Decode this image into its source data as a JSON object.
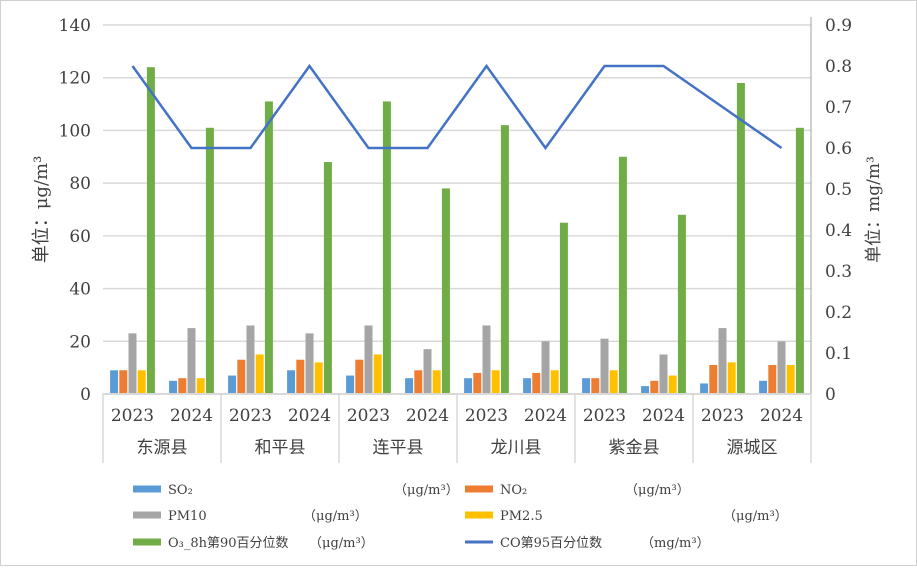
{
  "chart_data": {
    "type": "bar",
    "groups": [
      "东源县",
      "和平县",
      "连平县",
      "龙川县",
      "紫金县",
      "源城区"
    ],
    "categories": [
      "2023",
      "2024",
      "2023",
      "2024",
      "2023",
      "2024",
      "2023",
      "2024",
      "2023",
      "2024",
      "2023",
      "2024"
    ],
    "ylabel": "单位：μg/m³",
    "y2label": "单位：mg/m³",
    "ylim": [
      0,
      140
    ],
    "yticks": [
      "0",
      "20",
      "40",
      "60",
      "80",
      "100",
      "120",
      "140"
    ],
    "y2lim": [
      0,
      0.9
    ],
    "y2ticks": [
      "0",
      "0.1",
      "0.2",
      "0.3",
      "0.4",
      "0.5",
      "0.6",
      "0.7",
      "0.8",
      "0.9"
    ],
    "grid": true,
    "legend_position": "bottom",
    "series": [
      {
        "name": "SO₂",
        "unit": "（μg/m³）",
        "type": "bar",
        "color": "#5b9bd5",
        "values": [
          9,
          5,
          7,
          9,
          7,
          6,
          6,
          6,
          6,
          3,
          4,
          5
        ]
      },
      {
        "name": "NO₂",
        "unit": "（μg/m³）",
        "type": "bar",
        "color": "#ed7d31",
        "values": [
          9,
          6,
          13,
          13,
          13,
          9,
          8,
          8,
          6,
          5,
          11,
          11
        ]
      },
      {
        "name": "PM10",
        "unit": "（μg/m³）",
        "type": "bar",
        "color": "#a5a5a5",
        "values": [
          23,
          25,
          26,
          23,
          26,
          17,
          26,
          20,
          21,
          15,
          25,
          20
        ]
      },
      {
        "name": "PM2.5",
        "unit": "（μg/m³）",
        "type": "bar",
        "color": "#ffc000",
        "values": [
          9,
          6,
          15,
          12,
          15,
          9,
          9,
          9,
          9,
          7,
          12,
          11
        ]
      },
      {
        "name": "O₃_8h第90百分位数",
        "unit": "（μg/m³）",
        "type": "bar",
        "color": "#70ad47",
        "values": [
          124,
          101,
          111,
          88,
          111,
          78,
          102,
          65,
          90,
          68,
          118,
          101
        ]
      },
      {
        "name": "CO第95百分位数",
        "unit": "（mg/m³）",
        "type": "line",
        "axis": "right",
        "color": "#4472c4",
        "values": [
          0.8,
          0.6,
          0.6,
          0.8,
          0.6,
          0.6,
          0.8,
          0.6,
          0.8,
          0.8,
          0.7,
          0.6
        ]
      }
    ]
  }
}
